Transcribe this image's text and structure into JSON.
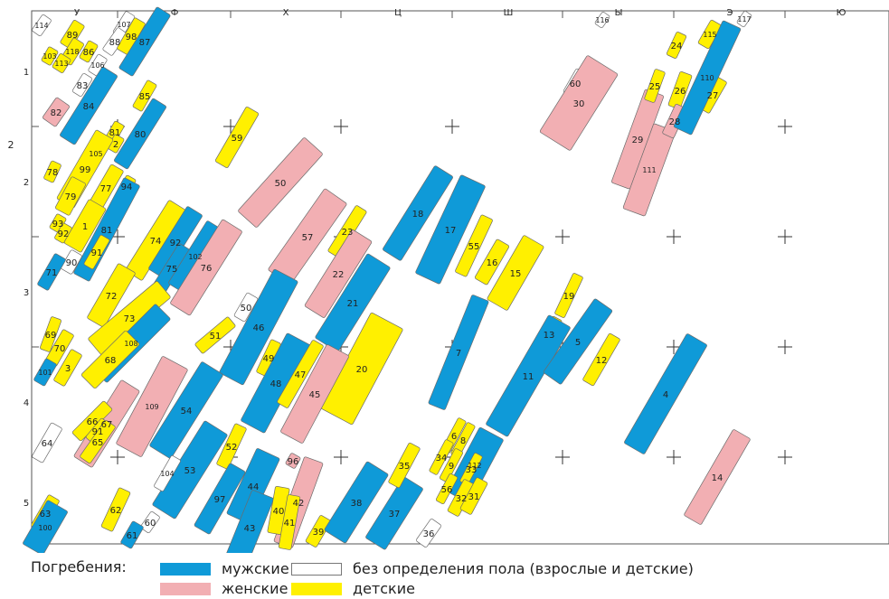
{
  "map": {
    "columns": [
      "У",
      "Ф",
      "Х",
      "Ц",
      "Ш",
      "Ы",
      "Э",
      "Ю"
    ],
    "rows": [
      "1",
      "2",
      "3",
      "4",
      "5"
    ],
    "side_label": "2"
  },
  "legend": {
    "title": "Погребения:",
    "male": "мужские",
    "female": "женские",
    "undetermined": "без определения пола (взрослые и детские)",
    "child": "детские"
  },
  "colors": {
    "male": "#0f9ad8",
    "female": "#f2afb3",
    "child": "#fff000",
    "undetermined": "#ffffff",
    "outline": "#6b6b6b"
  },
  "burials": [
    {
      "n": "114",
      "type": "undetermined"
    },
    {
      "n": "89",
      "type": "child"
    },
    {
      "n": "107",
      "type": "undetermined"
    },
    {
      "n": "88",
      "type": "undetermined"
    },
    {
      "n": "98",
      "type": "child"
    },
    {
      "n": "87",
      "type": "male"
    },
    {
      "n": "118",
      "type": "child"
    },
    {
      "n": "86",
      "type": "child"
    },
    {
      "n": "103",
      "type": "child"
    },
    {
      "n": "113",
      "type": "child"
    },
    {
      "n": "106",
      "type": "undetermined"
    },
    {
      "n": "83",
      "type": "undetermined"
    },
    {
      "n": "85",
      "type": "child"
    },
    {
      "n": "82",
      "type": "female"
    },
    {
      "n": "84",
      "type": "male"
    },
    {
      "n": "81",
      "type": "child"
    },
    {
      "n": "80",
      "type": "male"
    },
    {
      "n": "2",
      "type": "child"
    },
    {
      "n": "105",
      "type": "child"
    },
    {
      "n": "99",
      "type": "child"
    },
    {
      "n": "78",
      "type": "child"
    },
    {
      "n": "79",
      "type": "child"
    },
    {
      "n": "77",
      "type": "child"
    },
    {
      "n": "94",
      "type": "child"
    },
    {
      "n": "93",
      "type": "child"
    },
    {
      "n": "92",
      "type": "child"
    },
    {
      "n": "1",
      "type": "child"
    },
    {
      "n": "81",
      "type": "male"
    },
    {
      "n": "91",
      "type": "child"
    },
    {
      "n": "90",
      "type": "undetermined"
    },
    {
      "n": "71",
      "type": "male"
    },
    {
      "n": "74",
      "type": "child"
    },
    {
      "n": "92",
      "type": "male"
    },
    {
      "n": "75",
      "type": "male"
    },
    {
      "n": "102",
      "type": "male"
    },
    {
      "n": "76",
      "type": "female"
    },
    {
      "n": "72",
      "type": "child"
    },
    {
      "n": "73",
      "type": "child"
    },
    {
      "n": "108",
      "type": "male"
    },
    {
      "n": "68",
      "type": "child"
    },
    {
      "n": "69",
      "type": "child"
    },
    {
      "n": "70",
      "type": "child"
    },
    {
      "n": "101",
      "type": "male"
    },
    {
      "n": "3",
      "type": "child"
    },
    {
      "n": "109",
      "type": "female"
    },
    {
      "n": "67",
      "type": "female"
    },
    {
      "n": "66",
      "type": "child"
    },
    {
      "n": "91",
      "type": "child"
    },
    {
      "n": "65",
      "type": "child"
    },
    {
      "n": "64",
      "type": "undetermined"
    },
    {
      "n": "59",
      "type": "child"
    },
    {
      "n": "50",
      "type": "female"
    },
    {
      "n": "57",
      "type": "female"
    },
    {
      "n": "23",
      "type": "child"
    },
    {
      "n": "22",
      "type": "female"
    },
    {
      "n": "21",
      "type": "male"
    },
    {
      "n": "50",
      "type": "undetermined"
    },
    {
      "n": "46",
      "type": "male"
    },
    {
      "n": "51",
      "type": "child"
    },
    {
      "n": "49",
      "type": "child"
    },
    {
      "n": "54",
      "type": "male"
    },
    {
      "n": "48",
      "type": "male"
    },
    {
      "n": "47",
      "type": "child"
    },
    {
      "n": "20",
      "type": "child"
    },
    {
      "n": "45",
      "type": "female"
    },
    {
      "n": "52",
      "type": "child"
    },
    {
      "n": "53",
      "type": "male"
    },
    {
      "n": "104",
      "type": "undetermined"
    },
    {
      "n": "97",
      "type": "male"
    },
    {
      "n": "44",
      "type": "male"
    },
    {
      "n": "43",
      "type": "male"
    },
    {
      "n": "96",
      "type": "female"
    },
    {
      "n": "42",
      "type": "female"
    },
    {
      "n": "40",
      "type": "child"
    },
    {
      "n": "41",
      "type": "child"
    },
    {
      "n": "39",
      "type": "child"
    },
    {
      "n": "38",
      "type": "male"
    },
    {
      "n": "37",
      "type": "male"
    },
    {
      "n": "36",
      "type": "undetermined"
    },
    {
      "n": "35",
      "type": "child"
    },
    {
      "n": "63",
      "type": "child"
    },
    {
      "n": "100",
      "type": "male"
    },
    {
      "n": "62",
      "type": "child"
    },
    {
      "n": "60",
      "type": "undetermined"
    },
    {
      "n": "61",
      "type": "male"
    },
    {
      "n": "18",
      "type": "male"
    },
    {
      "n": "17",
      "type": "male"
    },
    {
      "n": "55",
      "type": "child"
    },
    {
      "n": "16",
      "type": "child"
    },
    {
      "n": "15",
      "type": "child"
    },
    {
      "n": "7",
      "type": "male"
    },
    {
      "n": "19",
      "type": "child"
    },
    {
      "n": "13",
      "type": "child"
    },
    {
      "n": "11",
      "type": "male"
    },
    {
      "n": "5",
      "type": "male"
    },
    {
      "n": "12",
      "type": "child"
    },
    {
      "n": "6",
      "type": "child"
    },
    {
      "n": "8",
      "type": "child"
    },
    {
      "n": "34",
      "type": "child"
    },
    {
      "n": "9",
      "type": "child"
    },
    {
      "n": "112",
      "type": "male"
    },
    {
      "n": "33",
      "type": "child"
    },
    {
      "n": "56",
      "type": "child"
    },
    {
      "n": "32",
      "type": "child"
    },
    {
      "n": "31",
      "type": "child"
    },
    {
      "n": "116",
      "type": "undetermined"
    },
    {
      "n": "60",
      "type": "undetermined"
    },
    {
      "n": "30",
      "type": "female"
    },
    {
      "n": "29",
      "type": "female"
    },
    {
      "n": "111",
      "type": "female"
    },
    {
      "n": "24",
      "type": "child"
    },
    {
      "n": "25",
      "type": "child"
    },
    {
      "n": "26",
      "type": "child"
    },
    {
      "n": "28",
      "type": "female"
    },
    {
      "n": "27",
      "type": "child"
    },
    {
      "n": "115",
      "type": "child"
    },
    {
      "n": "110",
      "type": "male"
    },
    {
      "n": "117",
      "type": "undetermined"
    },
    {
      "n": "4",
      "type": "male"
    },
    {
      "n": "14",
      "type": "female"
    }
  ]
}
